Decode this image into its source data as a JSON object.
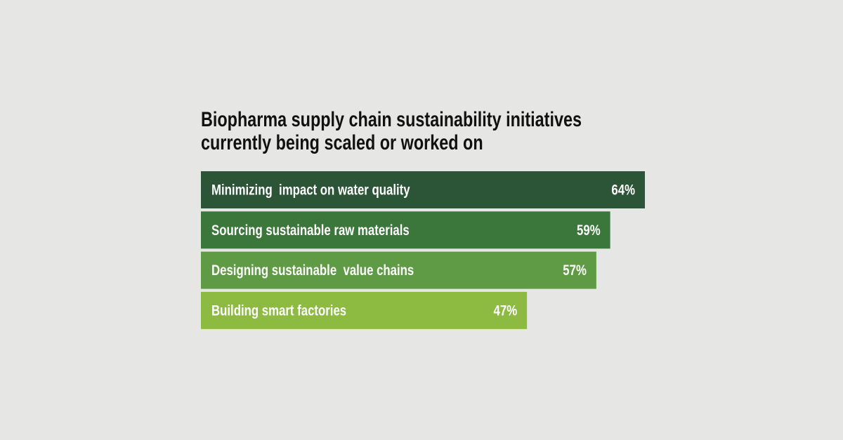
{
  "chart_data": {
    "type": "bar",
    "orientation": "horizontal",
    "title": [
      "Biopharma supply chain sustainability initiatives",
      "currently being scaled or worked on"
    ],
    "categories": [
      "Minimizing  impact on water quality",
      "Sourcing sustainable raw materials",
      "Designing sustainable  value chains",
      "Building smart factories"
    ],
    "values": [
      64,
      59,
      57,
      47
    ],
    "value_labels": [
      "64%",
      "59%",
      "57%",
      "47%"
    ],
    "colors": [
      "#2c5537",
      "#3b773a",
      "#5f9a45",
      "#8dba40"
    ]
  }
}
